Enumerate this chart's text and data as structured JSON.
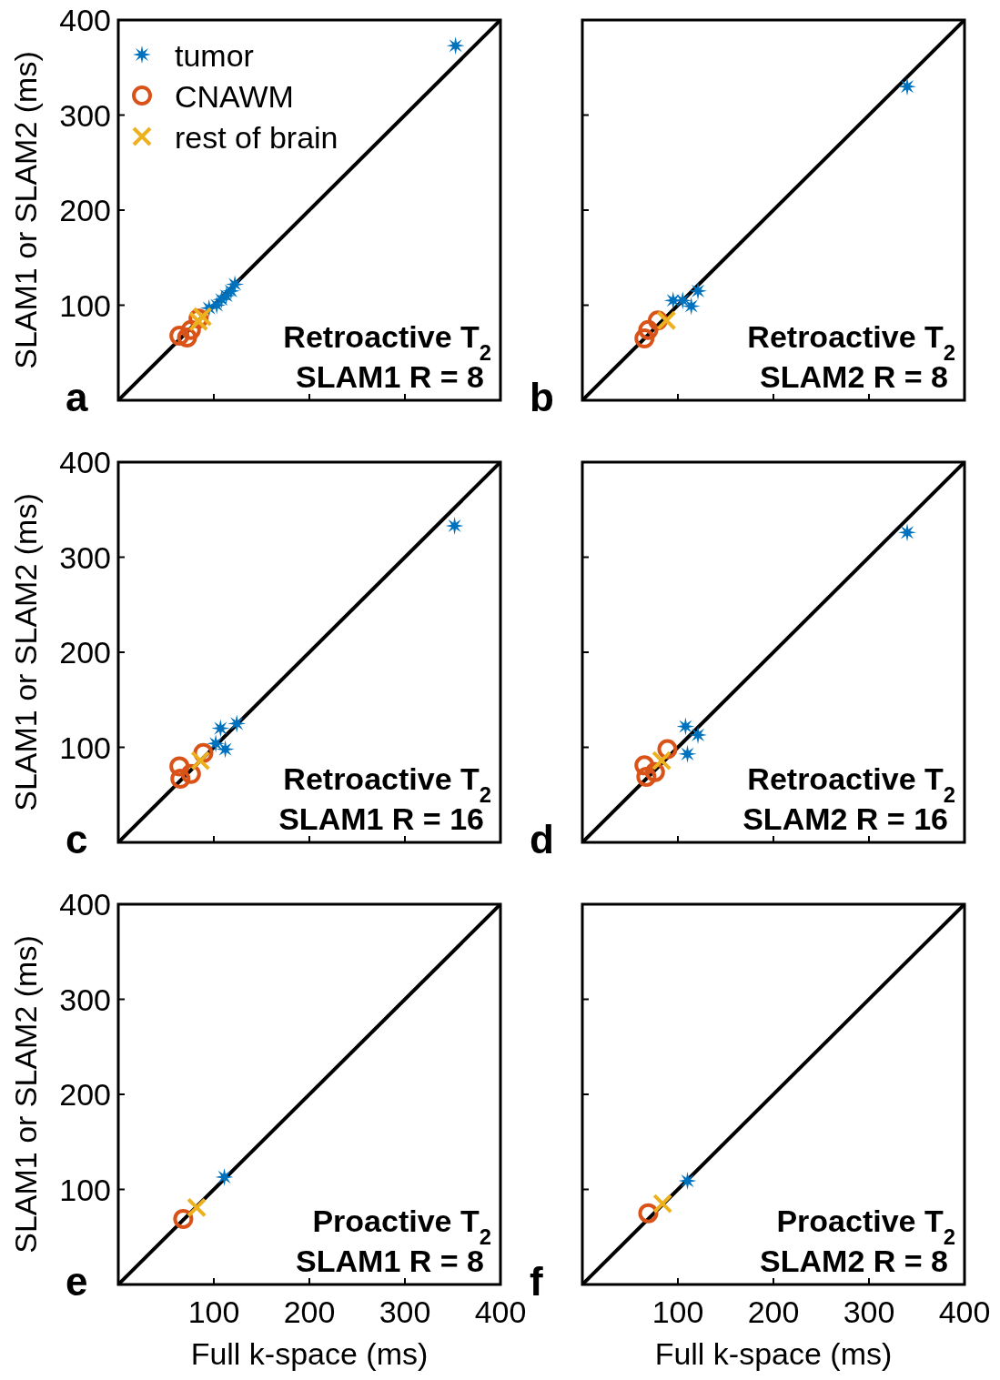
{
  "chart_data": [
    {
      "type": "scatter",
      "ylabel": "SLAM1 or SLAM2 (ms)",
      "xlim": [
        0,
        400
      ],
      "ylim": [
        0,
        400
      ],
      "xticks": [
        100,
        200,
        300,
        400
      ],
      "yticks": [
        100,
        200,
        300,
        400
      ],
      "tick_labels": "y",
      "legend": "top left",
      "annotations": [
        "a",
        "Retroactive T$_{2}$",
        "SLAM1 R = 8"
      ],
      "series": [
        {
          "type": "line",
          "color": "#000000",
          "x": [
            0,
            400
          ],
          "values": [
            0,
            400
          ],
          "marker": "none"
        },
        {
          "name": "tumor",
          "color": "#0072bd",
          "marker": "star",
          "x": [
            95,
            103,
            108,
            113,
            118,
            122,
            353
          ],
          "values": [
            97,
            100,
            106,
            110,
            115,
            122,
            373
          ]
        },
        {
          "name": "CNAWM",
          "color": "#d95319",
          "marker": "circle",
          "x": [
            64,
            72,
            76,
            84
          ],
          "values": [
            68,
            66,
            74,
            86
          ]
        },
        {
          "name": "rest of brain",
          "color": "#edb120",
          "marker": "cross",
          "x": [
            84,
            88
          ],
          "values": [
            83,
            88
          ]
        }
      ]
    },
    {
      "type": "scatter",
      "xlim": [
        0,
        400
      ],
      "ylim": [
        0,
        400
      ],
      "xticks": [
        100,
        200,
        300,
        400
      ],
      "yticks": [
        100,
        200,
        300,
        400
      ],
      "tick_labels": false,
      "annotations": [
        "b",
        "Retroactive T$_{2}$",
        "SLAM2 R = 8"
      ],
      "series": [
        {
          "type": "line",
          "color": "#000000",
          "x": [
            0,
            400
          ],
          "values": [
            0,
            400
          ],
          "marker": "none"
        },
        {
          "color": "#0072bd",
          "marker": "star",
          "x": [
            95,
            105,
            114,
            121,
            340
          ],
          "values": [
            105,
            105,
            99,
            115,
            330
          ]
        },
        {
          "color": "#d95319",
          "marker": "circle",
          "x": [
            65,
            69,
            79
          ],
          "values": [
            65,
            74,
            84
          ]
        },
        {
          "color": "#edb120",
          "marker": "cross",
          "x": [
            88
          ],
          "values": [
            84
          ]
        }
      ]
    },
    {
      "type": "scatter",
      "ylabel": "SLAM1 or SLAM2 (ms)",
      "xlim": [
        0,
        400
      ],
      "ylim": [
        0,
        400
      ],
      "xticks": [
        100,
        200,
        300,
        400
      ],
      "yticks": [
        100,
        200,
        300,
        400
      ],
      "tick_labels": "y",
      "annotations": [
        "c",
        "Retroactive T$_{2}$",
        "SLAM1 R = 16"
      ],
      "series": [
        {
          "type": "line",
          "color": "#000000",
          "x": [
            0,
            400
          ],
          "values": [
            0,
            400
          ],
          "marker": "none"
        },
        {
          "color": "#0072bd",
          "marker": "star",
          "x": [
            102,
            107,
            112,
            124,
            352
          ],
          "values": [
            104,
            120,
            98,
            125,
            333
          ]
        },
        {
          "color": "#d95319",
          "marker": "circle",
          "x": [
            64,
            65,
            76,
            89
          ],
          "values": [
            80,
            67,
            72,
            94
          ]
        },
        {
          "color": "#edb120",
          "marker": "cross",
          "x": [
            86
          ],
          "values": [
            86
          ]
        }
      ]
    },
    {
      "type": "scatter",
      "xlim": [
        0,
        400
      ],
      "ylim": [
        0,
        400
      ],
      "xticks": [
        100,
        200,
        300,
        400
      ],
      "yticks": [
        100,
        200,
        300,
        400
      ],
      "tick_labels": false,
      "annotations": [
        "d",
        "Retroactive T$_{2}$",
        "SLAM2 R = 16"
      ],
      "series": [
        {
          "type": "line",
          "color": "#000000",
          "x": [
            0,
            400
          ],
          "values": [
            0,
            400
          ],
          "marker": "none"
        },
        {
          "color": "#0072bd",
          "marker": "star",
          "x": [
            108,
            110,
            121,
            340
          ],
          "values": [
            122,
            93,
            113,
            326
          ]
        },
        {
          "color": "#d95319",
          "marker": "circle",
          "x": [
            65,
            67,
            76,
            89
          ],
          "values": [
            81,
            69,
            74,
            98
          ]
        },
        {
          "color": "#edb120",
          "marker": "cross",
          "x": [
            83
          ],
          "values": [
            86
          ]
        }
      ]
    },
    {
      "type": "scatter",
      "xlabel": "Full k-space (ms)",
      "ylabel": "SLAM1 or SLAM2 (ms)",
      "xlim": [
        0,
        400
      ],
      "ylim": [
        0,
        400
      ],
      "xticks": [
        100,
        200,
        300,
        400
      ],
      "yticks": [
        100,
        200,
        300,
        400
      ],
      "annotations": [
        "e",
        "Proactive T$_{2}$",
        "SLAM1 R = 8"
      ],
      "series": [
        {
          "type": "line",
          "color": "#000000",
          "x": [
            0,
            400
          ],
          "values": [
            0,
            400
          ],
          "marker": "none"
        },
        {
          "color": "#0072bd",
          "marker": "star",
          "x": [
            111
          ],
          "values": [
            113
          ]
        },
        {
          "color": "#d95319",
          "marker": "circle",
          "x": [
            68
          ],
          "values": [
            69
          ]
        },
        {
          "color": "#edb120",
          "marker": "cross",
          "x": [
            82
          ],
          "values": [
            81
          ]
        }
      ]
    },
    {
      "type": "scatter",
      "xlabel": "Full k-space (ms)",
      "xlim": [
        0,
        400
      ],
      "ylim": [
        0,
        400
      ],
      "xticks": [
        100,
        200,
        300,
        400
      ],
      "yticks": [
        100,
        200,
        300,
        400
      ],
      "tick_labels": "x",
      "annotations": [
        "f",
        "Proactive T$_{2}$",
        "SLAM2 R = 8"
      ],
      "series": [
        {
          "type": "line",
          "color": "#000000",
          "x": [
            0,
            400
          ],
          "values": [
            0,
            400
          ],
          "marker": "none"
        },
        {
          "color": "#0072bd",
          "marker": "star",
          "x": [
            110
          ],
          "values": [
            109
          ]
        },
        {
          "color": "#d95319",
          "marker": "circle",
          "x": [
            69
          ],
          "values": [
            75
          ]
        },
        {
          "color": "#edb120",
          "marker": "cross",
          "x": [
            84
          ],
          "values": [
            85
          ]
        }
      ]
    }
  ]
}
